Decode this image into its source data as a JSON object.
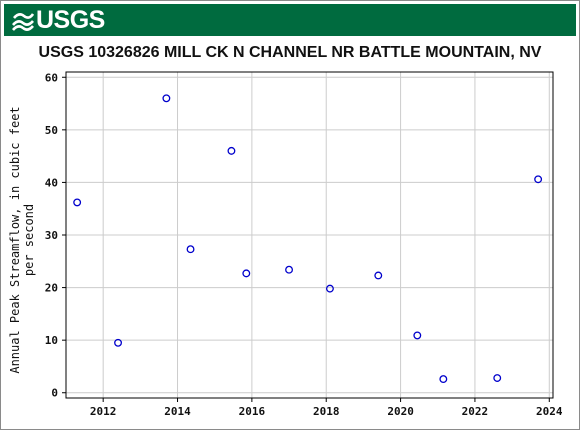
{
  "header": {
    "logo_text": "USGS",
    "brand_color": "#006b3f"
  },
  "chart_data": {
    "type": "scatter",
    "title": "USGS 10326826 MILL CK N CHANNEL NR BATTLE MOUNTAIN, NV",
    "xlabel": "",
    "ylabel_lines": [
      "Annual Peak Streamflow, in cubic feet",
      "per second"
    ],
    "xlim": [
      2011.0,
      2024.1
    ],
    "ylim": [
      -1,
      61
    ],
    "x_ticks": [
      2012,
      2014,
      2016,
      2018,
      2020,
      2022,
      2024
    ],
    "y_ticks": [
      0,
      10,
      20,
      30,
      40,
      50,
      60
    ],
    "grid": true,
    "marker_color": "#0000cc",
    "x": [
      2011.3,
      2012.4,
      2013.7,
      2014.35,
      2015.45,
      2015.85,
      2017.0,
      2018.1,
      2019.4,
      2020.45,
      2021.15,
      2022.6,
      2023.7
    ],
    "y": [
      36.2,
      9.5,
      56.0,
      27.3,
      46.0,
      22.7,
      23.4,
      19.8,
      22.3,
      10.9,
      2.6,
      2.8,
      40.6
    ]
  }
}
